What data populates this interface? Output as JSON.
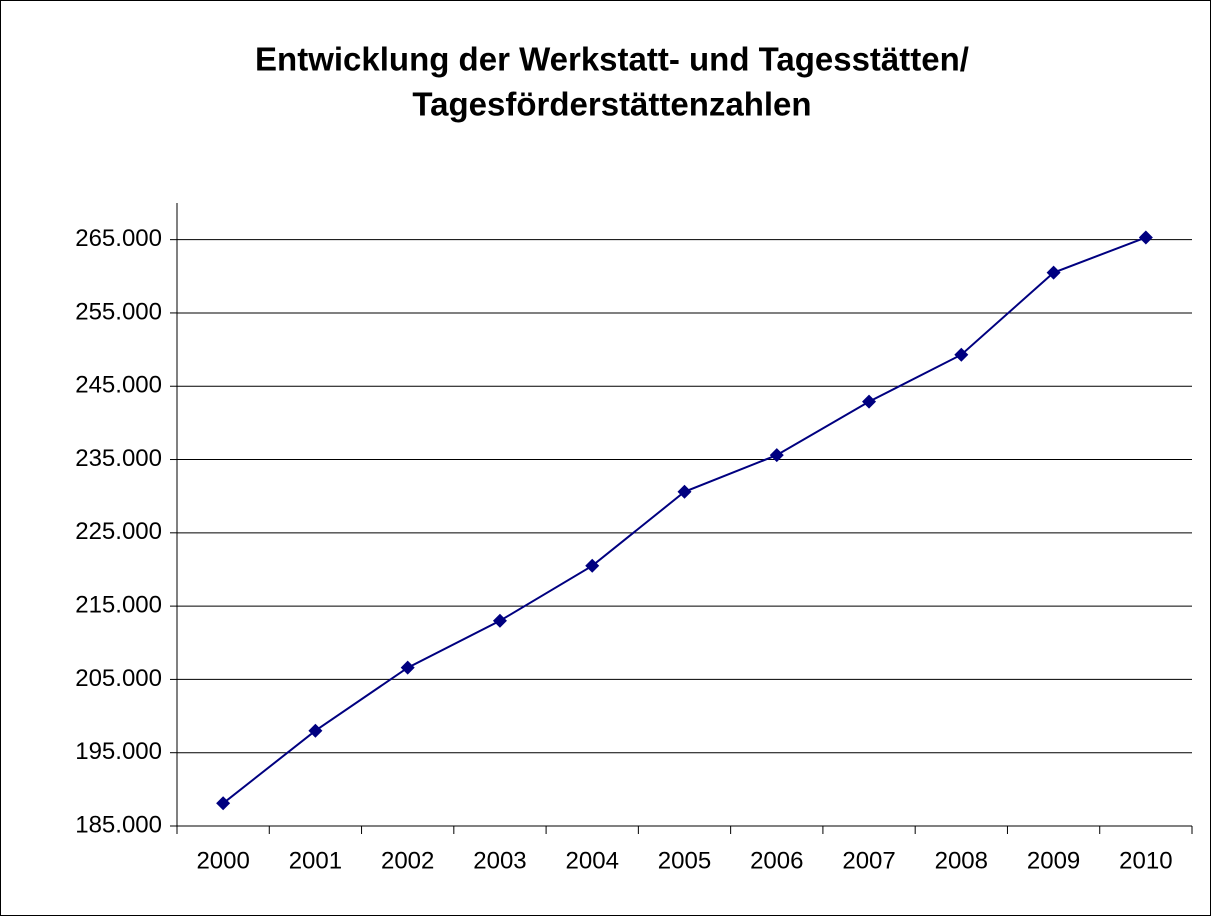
{
  "chart_data": {
    "type": "line",
    "title": [
      "Entwicklung der Werkstatt- und Tagesstätten/",
      "Tagesförderstättenzahlen"
    ],
    "categories": [
      "2000",
      "2001",
      "2002",
      "2003",
      "2004",
      "2005",
      "2006",
      "2007",
      "2008",
      "2009",
      "2010"
    ],
    "series": [
      {
        "color": "#000080",
        "values": [
          188100,
          198000,
          206600,
          213000,
          220500,
          230600,
          235600,
          242900,
          249300,
          260500,
          265300
        ]
      }
    ],
    "ylim": [
      185000,
      270000
    ],
    "yticks": [
      {
        "value": 185000,
        "label": "185.000"
      },
      {
        "value": 195000,
        "label": "195.000"
      },
      {
        "value": 205000,
        "label": "205.000"
      },
      {
        "value": 215000,
        "label": "215.000"
      },
      {
        "value": 225000,
        "label": "225.000"
      },
      {
        "value": 235000,
        "label": "235.000"
      },
      {
        "value": 245000,
        "label": "245.000"
      },
      {
        "value": 255000,
        "label": "255.000"
      },
      {
        "value": 265000,
        "label": "265.000"
      }
    ],
    "grid": true
  }
}
